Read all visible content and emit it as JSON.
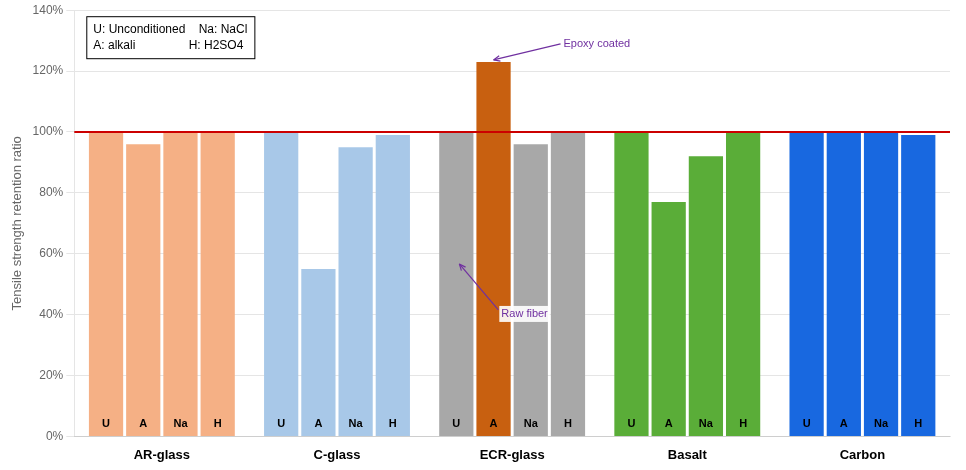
{
  "chart_data": {
    "type": "bar",
    "ylabel": "Tensile strength retention ratio",
    "categories": [
      "AR-glass",
      "C-glass",
      "ECR-glass",
      "Basalt",
      "Carbon"
    ],
    "series": [
      {
        "name": "U",
        "colors": [
          "#F5B085",
          "#A8C8E8",
          "#A8A8A8",
          "#5AAD38",
          "#1868E0"
        ],
        "values": [
          100,
          100,
          100,
          100,
          100
        ]
      },
      {
        "name": "A",
        "colors": [
          "#F5B085",
          "#A8C8E8",
          "#C86010",
          "#5AAD38",
          "#1868E0"
        ],
        "values": [
          96,
          55,
          123,
          77,
          100
        ]
      },
      {
        "name": "Na",
        "colors": [
          "#F5B085",
          "#A8C8E8",
          "#A8A8A8",
          "#5AAD38",
          "#1868E0"
        ],
        "values": [
          100,
          95,
          96,
          92,
          100
        ]
      },
      {
        "name": "H",
        "colors": [
          "#F5B085",
          "#A8C8E8",
          "#A8A8A8",
          "#5AAD38",
          "#1868E0"
        ],
        "values": [
          100,
          99,
          100,
          100,
          99
        ]
      }
    ],
    "ylim": [
      0,
      140
    ],
    "yticks": [
      {
        "value": 0,
        "label": "0%"
      },
      {
        "value": 20,
        "label": "20%"
      },
      {
        "value": 40,
        "label": "40%"
      },
      {
        "value": 60,
        "label": "60%"
      },
      {
        "value": 80,
        "label": "80%"
      },
      {
        "value": 100,
        "label": "100%"
      },
      {
        "value": 120,
        "label": "120%"
      },
      {
        "value": 140,
        "label": "140%"
      }
    ],
    "grid": true,
    "annotations": [
      {
        "type": "hline",
        "y": 100,
        "color": "#CC0000"
      },
      {
        "type": "text_box",
        "lines": [
          "U: Unconditioned    Na: NaCl",
          "A: alkali                H: H2SO4"
        ]
      },
      {
        "type": "arrow",
        "text": "Epoxy coated",
        "category": "ECR-glass",
        "series": "A",
        "color": "#7030A0"
      },
      {
        "type": "arrow",
        "text": "Raw fiber",
        "category": "ECR-glass",
        "series": "U",
        "color": "#7030A0"
      }
    ]
  }
}
